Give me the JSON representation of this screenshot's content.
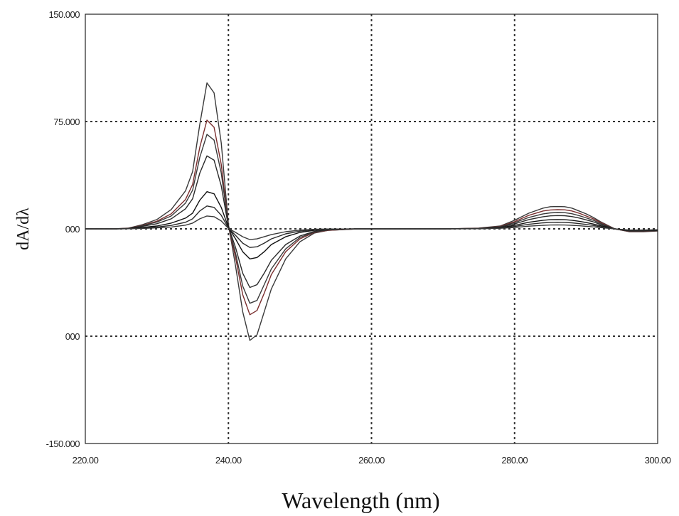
{
  "chart_data": {
    "type": "line",
    "xlabel": "Wavelength (nm)",
    "ylabel": "dA/dλ",
    "xlim": [
      220,
      300
    ],
    "ylim": [
      -150,
      150
    ],
    "x_ticks": [
      "220.00",
      "240.00",
      "260.00",
      "280.00",
      "300.00"
    ],
    "y_ticks": [
      "150.000",
      "75.000",
      "000",
      "000",
      "-150.000"
    ],
    "grid": "dashed, major ticks only",
    "legend": "none",
    "x": [
      220,
      222,
      224,
      226,
      228,
      230,
      232,
      234,
      235,
      236,
      237,
      238,
      239,
      240,
      241,
      242,
      243,
      244,
      245,
      246,
      248,
      250,
      252,
      254,
      256,
      258,
      260,
      265,
      270,
      275,
      278,
      280,
      282,
      284,
      285,
      286,
      287,
      288,
      289,
      290,
      291,
      292,
      294,
      296,
      298,
      300
    ],
    "series": [
      {
        "color": "#3a3a3a",
        "values": [
          0,
          0,
          0,
          0.5,
          3,
          6.5,
          13.5,
          26.5,
          40,
          73,
          102,
          95,
          60,
          3,
          -26,
          -58,
          -78,
          -74,
          -58,
          -42,
          -21,
          -9,
          -3,
          -1,
          -0.5,
          0,
          0,
          0,
          0,
          0.5,
          2,
          6,
          11,
          14.5,
          15.5,
          15.6,
          15.5,
          14.5,
          12.5,
          10.5,
          8,
          5,
          0,
          -2,
          -2,
          -1.5
        ]
      },
      {
        "color": "#7a2e2e",
        "values": [
          0,
          0,
          0,
          0.4,
          2.5,
          5.3,
          10.5,
          20.5,
          31,
          57,
          76,
          71,
          45,
          2,
          -20,
          -46,
          -60,
          -57,
          -45,
          -32,
          -16,
          -7,
          -2.5,
          -1,
          -0.5,
          0,
          0,
          0,
          0,
          0.4,
          1.7,
          5,
          9.5,
          12.5,
          13.2,
          13.4,
          13.3,
          12.5,
          11,
          9,
          7,
          4.5,
          0,
          -1.8,
          -1.8,
          -1.3
        ]
      },
      {
        "color": "#3a3a3a",
        "values": [
          0,
          0,
          0,
          0.3,
          2.2,
          4.7,
          9,
          18,
          27,
          50,
          66,
          62,
          39,
          2,
          -17,
          -40,
          -52,
          -50,
          -39,
          -28,
          -14,
          -6,
          -2.2,
          -0.8,
          -0.4,
          0,
          0,
          0,
          0,
          0.3,
          1.5,
          4.3,
          8,
          10.5,
          11.2,
          11.4,
          11.3,
          10.6,
          9.3,
          7.7,
          6,
          3.8,
          0,
          -1.6,
          -1.6,
          -1.2
        ]
      },
      {
        "color": "#2a2a2a",
        "values": [
          0,
          0,
          0,
          0.3,
          1.8,
          3.6,
          7,
          14,
          21,
          39,
          51,
          48,
          30,
          1.5,
          -13,
          -31,
          -41,
          -39,
          -31,
          -22,
          -11,
          -5,
          -1.8,
          -0.6,
          -0.3,
          0,
          0,
          0,
          0,
          0.3,
          1.2,
          3.5,
          6.5,
          8.5,
          9.1,
          9.3,
          9.2,
          8.6,
          7.6,
          6.3,
          4.9,
          3.1,
          0,
          -1.4,
          -1.4,
          -1.1
        ]
      },
      {
        "color": "#111111",
        "values": [
          0,
          0,
          0,
          0.2,
          1,
          2,
          4,
          7.5,
          11,
          20,
          26,
          24.5,
          15,
          1,
          -7,
          -16,
          -21,
          -20,
          -16,
          -11,
          -5.5,
          -2.5,
          -1,
          -0.3,
          -0.2,
          0,
          0,
          0,
          0,
          0.2,
          0.8,
          2.5,
          4.6,
          6,
          6.4,
          6.5,
          6.4,
          6,
          5.3,
          4.4,
          3.4,
          2.2,
          0,
          -1.2,
          -1.2,
          -1
        ]
      },
      {
        "color": "#2a2a2a",
        "values": [
          0,
          0,
          0,
          0.1,
          0.6,
          1.3,
          2.4,
          4.6,
          7,
          12.5,
          16,
          15,
          9.5,
          0.5,
          -4.5,
          -10,
          -13,
          -12.5,
          -10,
          -7,
          -3.5,
          -1.6,
          -0.6,
          -0.2,
          -0.1,
          0,
          0,
          0,
          0,
          0.1,
          0.6,
          1.7,
          3.2,
          4.2,
          4.5,
          4.6,
          4.5,
          4.2,
          3.7,
          3.1,
          2.4,
          1.5,
          0,
          -1,
          -1,
          -0.8
        ]
      },
      {
        "color": "#3a3a3a",
        "values": [
          0,
          0,
          0,
          0.1,
          0.3,
          0.7,
          1.3,
          2.6,
          4,
          7,
          9,
          8.5,
          5.5,
          0.3,
          -2.5,
          -5.5,
          -7.5,
          -7,
          -5.5,
          -4,
          -2,
          -0.9,
          -0.3,
          -0.1,
          -0.1,
          0,
          0,
          0,
          0,
          0.1,
          0.4,
          1,
          1.9,
          2.5,
          2.7,
          2.8,
          2.7,
          2.5,
          2.2,
          1.8,
          1.4,
          0.9,
          0,
          -0.8,
          -0.8,
          -0.6
        ]
      }
    ]
  }
}
